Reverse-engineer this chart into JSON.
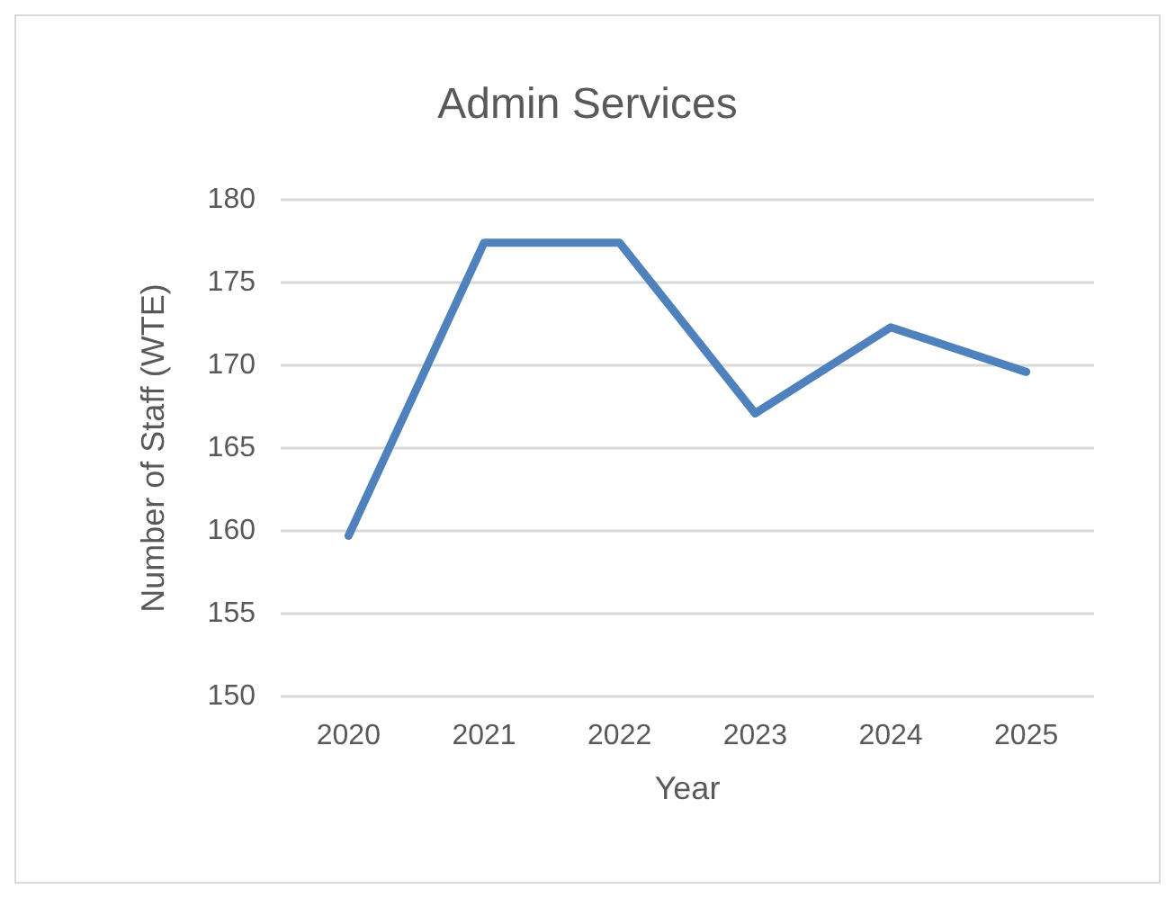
{
  "chart_data": {
    "type": "line",
    "title": "Admin Services",
    "xlabel": "Year",
    "ylabel": "Number of Staff (WTE)",
    "categories": [
      "2020",
      "2021",
      "2022",
      "2023",
      "2024",
      "2025"
    ],
    "series": [
      {
        "color": "#4f81bd",
        "values": [
          159.7,
          177.4,
          177.4,
          167.1,
          172.3,
          169.6
        ]
      }
    ],
    "ylim": [
      150,
      180
    ],
    "yticks": [
      150,
      155,
      160,
      165,
      170,
      175,
      180
    ],
    "grid": "y",
    "marker": "none",
    "line_style": "solid"
  }
}
